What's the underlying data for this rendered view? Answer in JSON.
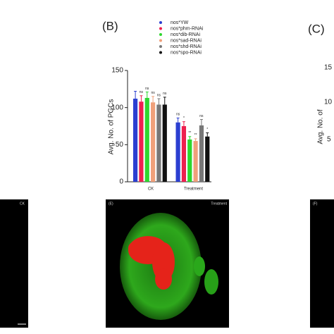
{
  "chart_data": {
    "type": "bar",
    "panel_label": "(B)",
    "y_label": "Avg. No. of PGCs",
    "categories": [
      "CK",
      "Treatment"
    ],
    "series": [
      {
        "name": "nos*YW",
        "color": "#2b3fd1",
        "values": [
          112,
          80
        ],
        "errors": [
          10,
          6
        ],
        "sig_labels": [
          null,
          "ns"
        ]
      },
      {
        "name": "nos*phm-RNAi",
        "color": "#ee1f4f",
        "values": [
          108,
          75
        ],
        "errors": [
          8,
          6
        ],
        "sig_labels": [
          "ns",
          "*"
        ]
      },
      {
        "name": "nos*dib-RNAi",
        "color": "#2ed62e",
        "values": [
          113,
          57
        ],
        "errors": [
          8,
          4
        ],
        "sig_labels": [
          "ns",
          "**"
        ]
      },
      {
        "name": "nos*sad-RNAi",
        "color": "#f0a07a",
        "values": [
          107,
          55
        ],
        "errors": [
          8,
          3
        ],
        "sig_labels": [
          "ns",
          "**"
        ]
      },
      {
        "name": "nos*shd-RNAi",
        "color": "#777777",
        "values": [
          104,
          76
        ],
        "errors": [
          8,
          8
        ],
        "sig_labels": [
          "ns",
          "ns"
        ]
      },
      {
        "name": "nos*spo-RNAi",
        "color": "#111111",
        "values": [
          104,
          61
        ],
        "errors": [
          10,
          5
        ],
        "sig_labels": [
          "ns",
          "*"
        ]
      }
    ],
    "ylim": [
      0,
      150
    ],
    "yticks": [
      0,
      50,
      100,
      150
    ]
  },
  "panel_c": {
    "label": "(C)",
    "tick_labels": [
      "15",
      "10",
      "5"
    ],
    "y_label": "Avg. No. of"
  },
  "images": [
    {
      "label": "CK"
    },
    {
      "label": "(E)",
      "caption": "Treatment"
    },
    {
      "label": "(F)"
    }
  ]
}
